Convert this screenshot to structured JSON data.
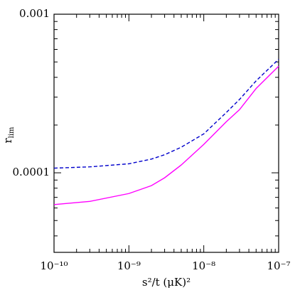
{
  "chart_data": {
    "type": "line",
    "xlabel": "s²/t (μK)²",
    "ylabel": {
      "text": "r",
      "subscript": "lim"
    },
    "x": [
      1e-10,
      3e-10,
      1e-09,
      2e-09,
      3e-09,
      5e-09,
      1e-08,
      2e-08,
      3e-08,
      5e-08,
      1e-07
    ],
    "series": [
      {
        "color": "#0000cc",
        "dash": true,
        "values": [
          0.000107,
          0.000109,
          0.000114,
          0.000122,
          0.00013,
          0.000145,
          0.000176,
          0.00024,
          0.00029,
          0.00038,
          0.00052
        ]
      },
      {
        "color": "#ff00ff",
        "dash": false,
        "values": [
          6.3e-05,
          6.6e-05,
          7.4e-05,
          8.3e-05,
          9.3e-05,
          0.000112,
          0.000151,
          0.00021,
          0.00025,
          0.00034,
          0.00047
        ]
      }
    ],
    "xlog": true,
    "ylog": true,
    "xlim": [
      1e-10,
      1e-07
    ],
    "xticks": [
      {
        "value": 1e-10,
        "label": "10⁻¹⁰"
      },
      {
        "value": 1e-09,
        "label": "10⁻⁹"
      },
      {
        "value": 1e-08,
        "label": "10⁻⁸"
      },
      {
        "value": 1e-07,
        "label": "10⁻⁷"
      }
    ],
    "ylim": [
      3.15e-05,
      0.001
    ],
    "yticks": [
      0.0001,
      0.001
    ]
  }
}
